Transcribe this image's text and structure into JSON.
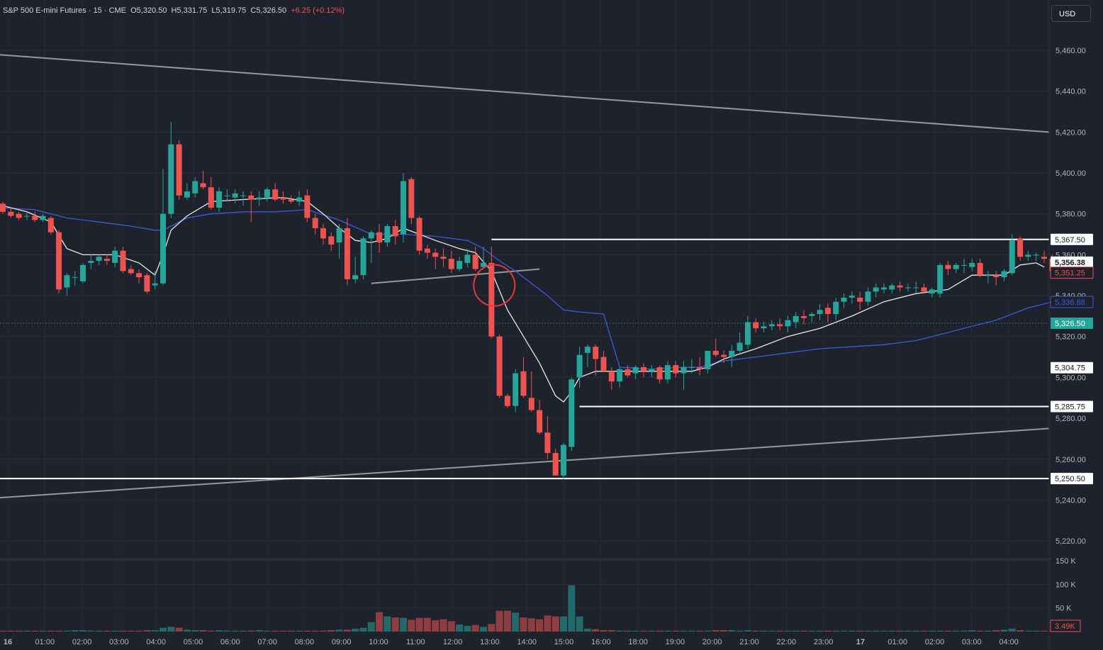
{
  "legend": {
    "symbol": "S&P 500 E-mini Futures · 15 · CME",
    "open": "O5,320.50",
    "high": "H5,331.75",
    "low": "L5,319.75",
    "close": "C5,326.50",
    "change": "+6.25 (+0.12%)"
  },
  "currency_button": "USD",
  "colors": {
    "background": "#1e222d",
    "up": "#26a69a",
    "down": "#ef5350",
    "ma_fast": "#e8e8e8",
    "ma_slow": "#3b5bdb",
    "lines": "#ffffff",
    "trendline": "#9598a1",
    "circle": "#e53935"
  },
  "chart_data": {
    "type": "candlestick",
    "x_ticks": [
      "16",
      "01:00",
      "02:00",
      "03:00",
      "04:00",
      "05:00",
      "06:00",
      "07:00",
      "08:00",
      "09:00",
      "10:00",
      "11:00",
      "12:00",
      "13:00",
      "14:00",
      "15:00",
      "16:00",
      "18:00",
      "19:00",
      "20:00",
      "21:00",
      "22:00",
      "23:00",
      "17",
      "01:00",
      "02:00",
      "03:00",
      "04:00"
    ],
    "y_ticks": [
      "5,460.00",
      "5,440.00",
      "5,420.00",
      "5,400.00",
      "5,380.00",
      "5,360.00",
      "5,340.00",
      "5,320.00",
      "5,300.00",
      "5,280.00",
      "5,260.00",
      "5,240.00",
      "5,220.00"
    ],
    "y_tick_values": [
      5460,
      5440,
      5420,
      5400,
      5380,
      5360,
      5340,
      5320,
      5300,
      5280,
      5260,
      5240,
      5220
    ],
    "ylim": [
      5215,
      5478
    ],
    "candles": [
      [
        5385,
        5386,
        5380,
        5381
      ],
      [
        5381,
        5383,
        5378,
        5379
      ],
      [
        5380,
        5381,
        5377,
        5378
      ],
      [
        5379,
        5381,
        5377,
        5379
      ],
      [
        5379,
        5381,
        5376,
        5377
      ],
      [
        5377,
        5380,
        5376,
        5379
      ],
      [
        5378,
        5379,
        5370,
        5371
      ],
      [
        5371,
        5372,
        5341,
        5343
      ],
      [
        5344,
        5351,
        5340,
        5350
      ],
      [
        5349,
        5352,
        5345,
        5349
      ],
      [
        5347,
        5356,
        5346,
        5355
      ],
      [
        5356,
        5360,
        5353,
        5357
      ],
      [
        5357,
        5360,
        5355,
        5359
      ],
      [
        5358,
        5360,
        5355,
        5357
      ],
      [
        5356,
        5364,
        5354,
        5362
      ],
      [
        5362,
        5364,
        5351,
        5352
      ],
      [
        5353,
        5355,
        5350,
        5351
      ],
      [
        5351,
        5353,
        5346,
        5349
      ],
      [
        5350,
        5351,
        5341,
        5342
      ],
      [
        5345,
        5352,
        5343,
        5346
      ],
      [
        5346,
        5402,
        5345,
        5380
      ],
      [
        5380,
        5425,
        5378,
        5414
      ],
      [
        5414,
        5416,
        5387,
        5389
      ],
      [
        5388,
        5395,
        5387,
        5391
      ],
      [
        5390,
        5398,
        5388,
        5396
      ],
      [
        5395,
        5401,
        5392,
        5393
      ],
      [
        5393,
        5398,
        5382,
        5383
      ],
      [
        5383,
        5393,
        5381,
        5391
      ],
      [
        5389,
        5392,
        5386,
        5389
      ],
      [
        5388,
        5392,
        5385,
        5390
      ],
      [
        5389,
        5391,
        5384,
        5389
      ],
      [
        5389,
        5391,
        5376,
        5387
      ],
      [
        5387,
        5391,
        5384,
        5388
      ],
      [
        5388,
        5393,
        5386,
        5392
      ],
      [
        5392,
        5395,
        5386,
        5387
      ],
      [
        5388,
        5391,
        5385,
        5387
      ],
      [
        5387,
        5389,
        5385,
        5386
      ],
      [
        5386,
        5391,
        5384,
        5388
      ],
      [
        5389,
        5392,
        5376,
        5378
      ],
      [
        5378,
        5380,
        5370,
        5373
      ],
      [
        5373,
        5375,
        5365,
        5368
      ],
      [
        5369,
        5371,
        5362,
        5365
      ],
      [
        5366,
        5375,
        5358,
        5373
      ],
      [
        5373,
        5378,
        5345,
        5348
      ],
      [
        5348,
        5359,
        5346,
        5350
      ],
      [
        5350,
        5369,
        5348,
        5368
      ],
      [
        5368,
        5372,
        5356,
        5371
      ],
      [
        5371,
        5375,
        5361,
        5366
      ],
      [
        5366,
        5375,
        5364,
        5374
      ],
      [
        5374,
        5377,
        5365,
        5369
      ],
      [
        5370,
        5400,
        5366,
        5396
      ],
      [
        5397,
        5398,
        5375,
        5378
      ],
      [
        5378,
        5379,
        5360,
        5362
      ],
      [
        5363,
        5365,
        5358,
        5361
      ],
      [
        5361,
        5363,
        5353,
        5359
      ],
      [
        5359,
        5363,
        5354,
        5358
      ],
      [
        5358,
        5362,
        5351,
        5353
      ],
      [
        5353,
        5359,
        5352,
        5357
      ],
      [
        5356,
        5363,
        5354,
        5360
      ],
      [
        5360,
        5364,
        5352,
        5353
      ],
      [
        5354,
        5364,
        5353,
        5356
      ],
      [
        5356,
        5364,
        5319,
        5320
      ],
      [
        5320,
        5321,
        5290,
        5291
      ],
      [
        5291,
        5292,
        5285,
        5286
      ],
      [
        5286,
        5304,
        5283,
        5302
      ],
      [
        5303,
        5310,
        5290,
        5291
      ],
      [
        5290,
        5303,
        5283,
        5284
      ],
      [
        5284,
        5289,
        5272,
        5273
      ],
      [
        5273,
        5281,
        5260,
        5263
      ],
      [
        5263,
        5265,
        5253,
        5252
      ],
      [
        5252,
        5268,
        5250,
        5267
      ],
      [
        5266,
        5300,
        5264,
        5299
      ],
      [
        5300,
        5315,
        5295,
        5311
      ],
      [
        5312,
        5316,
        5305,
        5315
      ],
      [
        5315,
        5316,
        5301,
        5309
      ],
      [
        5310,
        5313,
        5303,
        5303
      ],
      [
        5303,
        5305,
        5294,
        5298
      ],
      [
        5298,
        5305,
        5295,
        5304
      ],
      [
        5304,
        5306,
        5300,
        5301
      ],
      [
        5302,
        5306,
        5299,
        5305
      ],
      [
        5305,
        5307,
        5300,
        5303
      ],
      [
        5303,
        5306,
        5300,
        5304
      ],
      [
        5305,
        5306,
        5297,
        5299
      ],
      [
        5299,
        5308,
        5297,
        5306
      ],
      [
        5306,
        5308,
        5300,
        5302
      ],
      [
        5302,
        5308,
        5294,
        5305
      ],
      [
        5305,
        5309,
        5302,
        5305
      ],
      [
        5305,
        5310,
        5301,
        5304
      ],
      [
        5304,
        5312,
        5302,
        5313
      ],
      [
        5313,
        5319,
        5310,
        5311
      ],
      [
        5311,
        5313,
        5307,
        5310
      ],
      [
        5310,
        5316,
        5305,
        5313
      ],
      [
        5313,
        5322,
        5312,
        5317
      ],
      [
        5316,
        5330,
        5314,
        5327
      ],
      [
        5327,
        5329,
        5322,
        5324
      ],
      [
        5324,
        5327,
        5322,
        5325
      ],
      [
        5325,
        5328,
        5323,
        5326
      ],
      [
        5326,
        5329,
        5323,
        5325
      ],
      [
        5325,
        5330,
        5322,
        5328
      ],
      [
        5327,
        5332,
        5324,
        5330
      ],
      [
        5330,
        5333,
        5326,
        5329
      ],
      [
        5330,
        5332,
        5327,
        5331
      ],
      [
        5331,
        5336,
        5328,
        5333
      ],
      [
        5334,
        5336,
        5327,
        5331
      ],
      [
        5331,
        5339,
        5328,
        5337
      ],
      [
        5337,
        5341,
        5334,
        5339
      ],
      [
        5339,
        5342,
        5336,
        5340
      ],
      [
        5339,
        5342,
        5333,
        5337
      ],
      [
        5337,
        5344,
        5335,
        5342
      ],
      [
        5342,
        5346,
        5339,
        5344
      ],
      [
        5343,
        5346,
        5341,
        5344
      ],
      [
        5343,
        5346,
        5341,
        5345
      ],
      [
        5345,
        5347,
        5342,
        5344
      ],
      [
        5344,
        5346,
        5342,
        5344
      ],
      [
        5344,
        5347,
        5341,
        5344
      ],
      [
        5344,
        5346,
        5341,
        5342
      ],
      [
        5341,
        5344,
        5339,
        5343
      ],
      [
        5341,
        5356,
        5339,
        5355
      ],
      [
        5355,
        5357,
        5350,
        5353
      ],
      [
        5353,
        5356,
        5351,
        5355
      ],
      [
        5355,
        5358,
        5351,
        5355
      ],
      [
        5354,
        5358,
        5352,
        5356
      ],
      [
        5356,
        5358,
        5349,
        5350
      ],
      [
        5350,
        5352,
        5346,
        5350
      ],
      [
        5350,
        5352,
        5345,
        5349
      ],
      [
        5349,
        5353,
        5347,
        5352
      ],
      [
        5351,
        5370,
        5350,
        5367
      ],
      [
        5368,
        5369,
        5357,
        5359
      ],
      [
        5359,
        5362,
        5357,
        5360
      ],
      [
        5360,
        5361,
        5357,
        5360
      ],
      [
        5359,
        5362,
        5356,
        5358
      ],
      [
        5358,
        5360,
        5351,
        5352
      ]
    ],
    "ma_fast": [
      [
        0,
        5384
      ],
      [
        3,
        5381
      ],
      [
        6,
        5376
      ],
      [
        8,
        5363
      ],
      [
        10,
        5360
      ],
      [
        14,
        5360
      ],
      [
        17,
        5356
      ],
      [
        19,
        5350
      ],
      [
        20,
        5360
      ],
      [
        21,
        5372
      ],
      [
        23,
        5379
      ],
      [
        26,
        5386
      ],
      [
        30,
        5387
      ],
      [
        35,
        5388
      ],
      [
        38,
        5386
      ],
      [
        40,
        5380
      ],
      [
        42,
        5373
      ],
      [
        44,
        5367
      ],
      [
        46,
        5366
      ],
      [
        48,
        5368
      ],
      [
        50,
        5373
      ],
      [
        52,
        5370
      ],
      [
        54,
        5367
      ],
      [
        57,
        5363
      ],
      [
        59,
        5361
      ],
      [
        61,
        5352
      ],
      [
        63,
        5333
      ],
      [
        65,
        5320
      ],
      [
        67,
        5307
      ],
      [
        69,
        5291
      ],
      [
        70,
        5288
      ],
      [
        71,
        5293
      ],
      [
        72,
        5300
      ],
      [
        74,
        5303
      ],
      [
        78,
        5303
      ],
      [
        82,
        5303
      ],
      [
        86,
        5303
      ],
      [
        88,
        5305
      ],
      [
        90,
        5309
      ],
      [
        94,
        5314
      ],
      [
        98,
        5320
      ],
      [
        102,
        5324
      ],
      [
        106,
        5330
      ],
      [
        110,
        5337
      ],
      [
        114,
        5341
      ],
      [
        118,
        5343
      ],
      [
        121,
        5350
      ],
      [
        125,
        5350
      ],
      [
        127,
        5355
      ],
      [
        129,
        5356
      ],
      [
        130,
        5354
      ]
    ],
    "ma_slow": [
      [
        0,
        5383
      ],
      [
        4,
        5382
      ],
      [
        8,
        5378
      ],
      [
        12,
        5376
      ],
      [
        16,
        5374
      ],
      [
        19,
        5372
      ],
      [
        20,
        5372
      ],
      [
        23,
        5378
      ],
      [
        26,
        5380
      ],
      [
        30,
        5381
      ],
      [
        34,
        5381
      ],
      [
        38,
        5382
      ],
      [
        42,
        5377
      ],
      [
        46,
        5370
      ],
      [
        50,
        5370
      ],
      [
        54,
        5369
      ],
      [
        58,
        5367
      ],
      [
        60,
        5363
      ],
      [
        62,
        5357
      ],
      [
        64,
        5352
      ],
      [
        66,
        5346
      ],
      [
        68,
        5340
      ],
      [
        70,
        5333
      ],
      [
        72,
        5332
      ],
      [
        75,
        5331
      ],
      [
        77,
        5305
      ],
      [
        81,
        5304
      ],
      [
        85,
        5305
      ],
      [
        87,
        5305
      ],
      [
        90,
        5308
      ],
      [
        94,
        5310
      ],
      [
        98,
        5312
      ],
      [
        102,
        5314
      ],
      [
        106,
        5315
      ],
      [
        110,
        5316
      ],
      [
        114,
        5318
      ],
      [
        118,
        5322
      ],
      [
        121,
        5325
      ],
      [
        124,
        5328
      ],
      [
        126,
        5331
      ],
      [
        128,
        5334
      ],
      [
        131,
        5337
      ]
    ],
    "horizontal_levels": [
      {
        "value": 5367.5,
        "label": "5,367.50",
        "x_start_bar": 61
      },
      {
        "value": 5304.75,
        "label": "5,304.75",
        "x_start_bar": null
      },
      {
        "value": 5285.75,
        "label": "5,285.75",
        "x_start_bar": 72
      },
      {
        "value": 5250.5,
        "label": "5,250.50",
        "x_start_bar": -1
      }
    ],
    "price_labels": [
      {
        "value": 5356.38,
        "label": "5,356.38",
        "style": "white"
      },
      {
        "value": 5351.25,
        "label": "5,351.25",
        "style": "red"
      },
      {
        "value": 5336.88,
        "label": "5,336.88",
        "style": "blue"
      },
      {
        "value": 5326.5,
        "label": "5,326.50",
        "style": "green"
      }
    ],
    "current_price": 5326.5,
    "trendlines": [
      {
        "from": [
          -1,
          5458
        ],
        "to": [
          131,
          5420
        ]
      },
      {
        "from": [
          -1,
          5241
        ],
        "to": [
          131,
          5275
        ]
      },
      {
        "from": [
          46,
          5346
        ],
        "to": [
          67,
          5353
        ]
      }
    ],
    "circle_marker": {
      "bar": 61,
      "value": 5345
    },
    "volume": [
      2,
      2,
      2,
      2,
      2,
      2,
      2,
      2,
      2,
      3,
      3,
      2,
      2,
      2,
      2,
      2,
      2,
      2,
      3,
      3,
      8,
      10,
      8,
      4,
      3,
      3,
      2,
      3,
      2,
      2,
      2,
      2,
      3,
      2,
      2,
      2,
      2,
      2,
      2,
      2,
      2,
      3,
      4,
      4,
      6,
      8,
      20,
      41,
      32,
      30,
      29,
      25,
      29,
      29,
      24,
      26,
      22,
      15,
      12,
      14,
      10,
      16,
      44,
      44,
      40,
      30,
      28,
      26,
      34,
      32,
      32,
      98,
      32,
      6,
      5,
      3,
      3,
      2,
      2,
      2,
      2,
      2,
      2,
      2,
      2,
      2,
      2,
      2,
      2,
      3,
      3,
      3,
      2,
      3,
      2,
      2,
      2,
      2,
      2,
      2,
      2,
      2,
      2,
      2,
      2,
      2,
      2,
      2,
      2,
      2,
      2,
      2,
      2,
      2,
      2,
      2,
      2,
      2,
      2,
      2,
      2,
      3,
      2,
      2,
      3,
      4,
      6,
      3,
      2,
      2,
      2,
      2
    ],
    "volume_ticks": [
      "150 K",
      "100 K",
      "50 K"
    ],
    "volume_tick_values": [
      150,
      100,
      50
    ],
    "volume_max": 150,
    "volume_label": "3.49K"
  }
}
